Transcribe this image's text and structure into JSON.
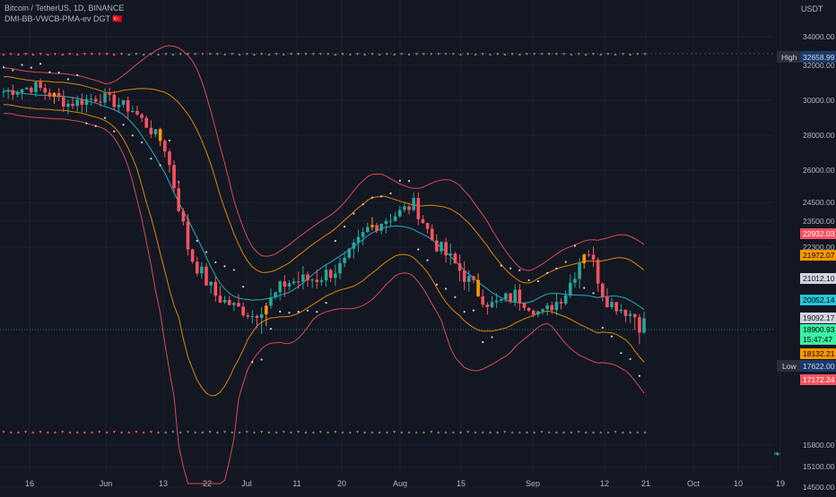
{
  "legend": {
    "symbol": "Bitcoin / TetherUS, 1D, BINANCE",
    "indicator": "DMI-BB-VWCB-PMA-ev DGT 🇹🇷"
  },
  "info_icon": "leaf-icon",
  "chart_data": {
    "type": "candlestick",
    "currency": "USDT",
    "x_ticks": [
      "16",
      "Jun",
      "13",
      "22",
      "Jul",
      "11",
      "20",
      "Aug",
      "15",
      "Sep",
      "12",
      "21",
      "Oct",
      "10",
      "19"
    ],
    "y_ticks": [
      "34000.00",
      "32000.00",
      "30000.00",
      "28000.00",
      "26000.00",
      "24500.00",
      "23500.00",
      "22300.00",
      "15800.00",
      "15100.00",
      "14500.00"
    ],
    "y_tick_values": [
      34000,
      32000,
      30000,
      28000,
      26000,
      24500,
      23500,
      22300,
      15800,
      15100,
      14500
    ],
    "high": {
      "label": "High",
      "value": "32658.99"
    },
    "low": {
      "label": "Low",
      "value": "17622.00"
    },
    "price_tags": [
      {
        "text": "22932.03",
        "bg": "#f7525f",
        "fg": "#ffffff"
      },
      {
        "text": "21972.07",
        "bg": "#ff9800",
        "fg": "#000000"
      },
      {
        "text": "21012.10",
        "bg": "#d1d4dc",
        "fg": "#131722"
      },
      {
        "text": "20052.14",
        "bg": "#26c6da",
        "fg": "#000000"
      },
      {
        "text": "19092.17",
        "bg": "#d1d4dc",
        "fg": "#131722"
      },
      {
        "text": "18900.93",
        "bg": "#3cf0a6",
        "fg": "#000000"
      },
      {
        "text": "15:47:47",
        "bg": "#3cf0a6",
        "fg": "#000000"
      },
      {
        "text": "18132.21",
        "bg": "#ff9800",
        "fg": "#000000"
      },
      {
        "text": "17172.24",
        "bg": "#f7525f",
        "fg": "#ffffff"
      }
    ],
    "series": [
      {
        "name": "Upper outer band",
        "color": "#f7525f"
      },
      {
        "name": "Upper inner band",
        "color": "#ff9800"
      },
      {
        "name": "Basis",
        "color": "#26c6da"
      },
      {
        "name": "Lower inner band",
        "color": "#ff9800"
      },
      {
        "name": "Lower outer band",
        "color": "#f7525f"
      },
      {
        "name": "PSAR",
        "color": "#d1d4dc"
      }
    ],
    "candle_colors": {
      "up": "#26a69a",
      "down": "#f7525f",
      "highlight": "#ff9800",
      "strong_up": "#4caf50"
    }
  }
}
